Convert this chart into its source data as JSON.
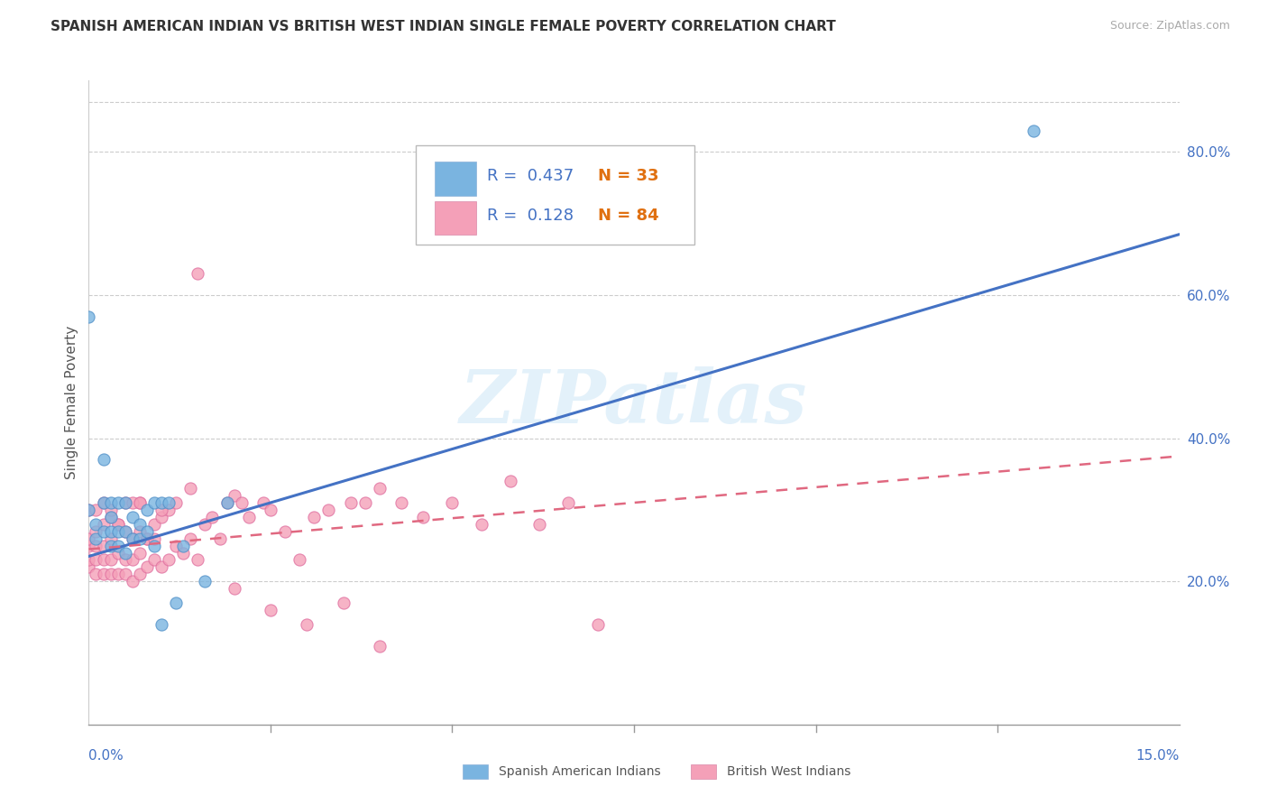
{
  "title": "SPANISH AMERICAN INDIAN VS BRITISH WEST INDIAN SINGLE FEMALE POVERTY CORRELATION CHART",
  "source": "Source: ZipAtlas.com",
  "ylabel": "Single Female Poverty",
  "right_ytick_vals": [
    0.2,
    0.4,
    0.6,
    0.8
  ],
  "right_ytick_labels": [
    "20.0%",
    "40.0%",
    "60.0%",
    "80.0%"
  ],
  "xmin": 0.0,
  "xmax": 0.15,
  "ymin": 0.0,
  "ymax": 0.9,
  "legend1_R": "0.437",
  "legend1_N": "33",
  "legend2_R": "0.128",
  "legend2_N": "84",
  "series1_color": "#7ab4e0",
  "series2_color": "#f4a0b8",
  "series1_edge": "#5090c8",
  "series2_edge": "#e070a0",
  "trendline1_color": "#4472c4",
  "trendline2_color": "#e06880",
  "blue_trend_x": [
    0.0,
    0.15
  ],
  "blue_trend_y": [
    0.235,
    0.685
  ],
  "pink_trend_x": [
    0.0,
    0.15
  ],
  "pink_trend_y": [
    0.245,
    0.375
  ],
  "blue_x": [
    0.0,
    0.0,
    0.001,
    0.001,
    0.002,
    0.002,
    0.002,
    0.003,
    0.003,
    0.003,
    0.003,
    0.004,
    0.004,
    0.004,
    0.005,
    0.005,
    0.005,
    0.006,
    0.006,
    0.007,
    0.007,
    0.008,
    0.008,
    0.009,
    0.009,
    0.01,
    0.01,
    0.011,
    0.012,
    0.013,
    0.016,
    0.019,
    0.13
  ],
  "blue_y": [
    0.3,
    0.57,
    0.26,
    0.28,
    0.27,
    0.31,
    0.37,
    0.25,
    0.27,
    0.29,
    0.31,
    0.25,
    0.27,
    0.31,
    0.24,
    0.27,
    0.31,
    0.26,
    0.29,
    0.26,
    0.28,
    0.27,
    0.3,
    0.25,
    0.31,
    0.14,
    0.31,
    0.31,
    0.17,
    0.25,
    0.2,
    0.31,
    0.83
  ],
  "pink_x": [
    0.0,
    0.0,
    0.0,
    0.0,
    0.001,
    0.001,
    0.001,
    0.001,
    0.002,
    0.002,
    0.002,
    0.002,
    0.003,
    0.003,
    0.003,
    0.003,
    0.004,
    0.004,
    0.004,
    0.005,
    0.005,
    0.005,
    0.006,
    0.006,
    0.006,
    0.007,
    0.007,
    0.007,
    0.007,
    0.008,
    0.008,
    0.009,
    0.009,
    0.01,
    0.01,
    0.011,
    0.011,
    0.012,
    0.012,
    0.013,
    0.014,
    0.014,
    0.015,
    0.016,
    0.017,
    0.018,
    0.019,
    0.02,
    0.021,
    0.022,
    0.024,
    0.025,
    0.027,
    0.029,
    0.031,
    0.033,
    0.036,
    0.038,
    0.04,
    0.043,
    0.046,
    0.05,
    0.054,
    0.058,
    0.062,
    0.066,
    0.07,
    0.0,
    0.001,
    0.002,
    0.003,
    0.004,
    0.005,
    0.006,
    0.007,
    0.008,
    0.009,
    0.01,
    0.015,
    0.02,
    0.025,
    0.03,
    0.035,
    0.04
  ],
  "pink_y": [
    0.22,
    0.23,
    0.25,
    0.26,
    0.21,
    0.23,
    0.25,
    0.27,
    0.21,
    0.23,
    0.25,
    0.28,
    0.21,
    0.23,
    0.26,
    0.29,
    0.21,
    0.24,
    0.28,
    0.21,
    0.23,
    0.27,
    0.2,
    0.23,
    0.26,
    0.21,
    0.24,
    0.27,
    0.31,
    0.22,
    0.26,
    0.23,
    0.28,
    0.22,
    0.29,
    0.23,
    0.3,
    0.25,
    0.31,
    0.24,
    0.26,
    0.33,
    0.63,
    0.28,
    0.29,
    0.26,
    0.31,
    0.32,
    0.31,
    0.29,
    0.31,
    0.3,
    0.27,
    0.23,
    0.29,
    0.3,
    0.31,
    0.31,
    0.33,
    0.31,
    0.29,
    0.31,
    0.28,
    0.34,
    0.28,
    0.31,
    0.14,
    0.3,
    0.3,
    0.31,
    0.3,
    0.28,
    0.31,
    0.31,
    0.31,
    0.26,
    0.26,
    0.3,
    0.23,
    0.19,
    0.16,
    0.14,
    0.17,
    0.11
  ],
  "watermark_text": "ZIPatlas",
  "bg_color": "#ffffff",
  "grid_color": "#cccccc"
}
